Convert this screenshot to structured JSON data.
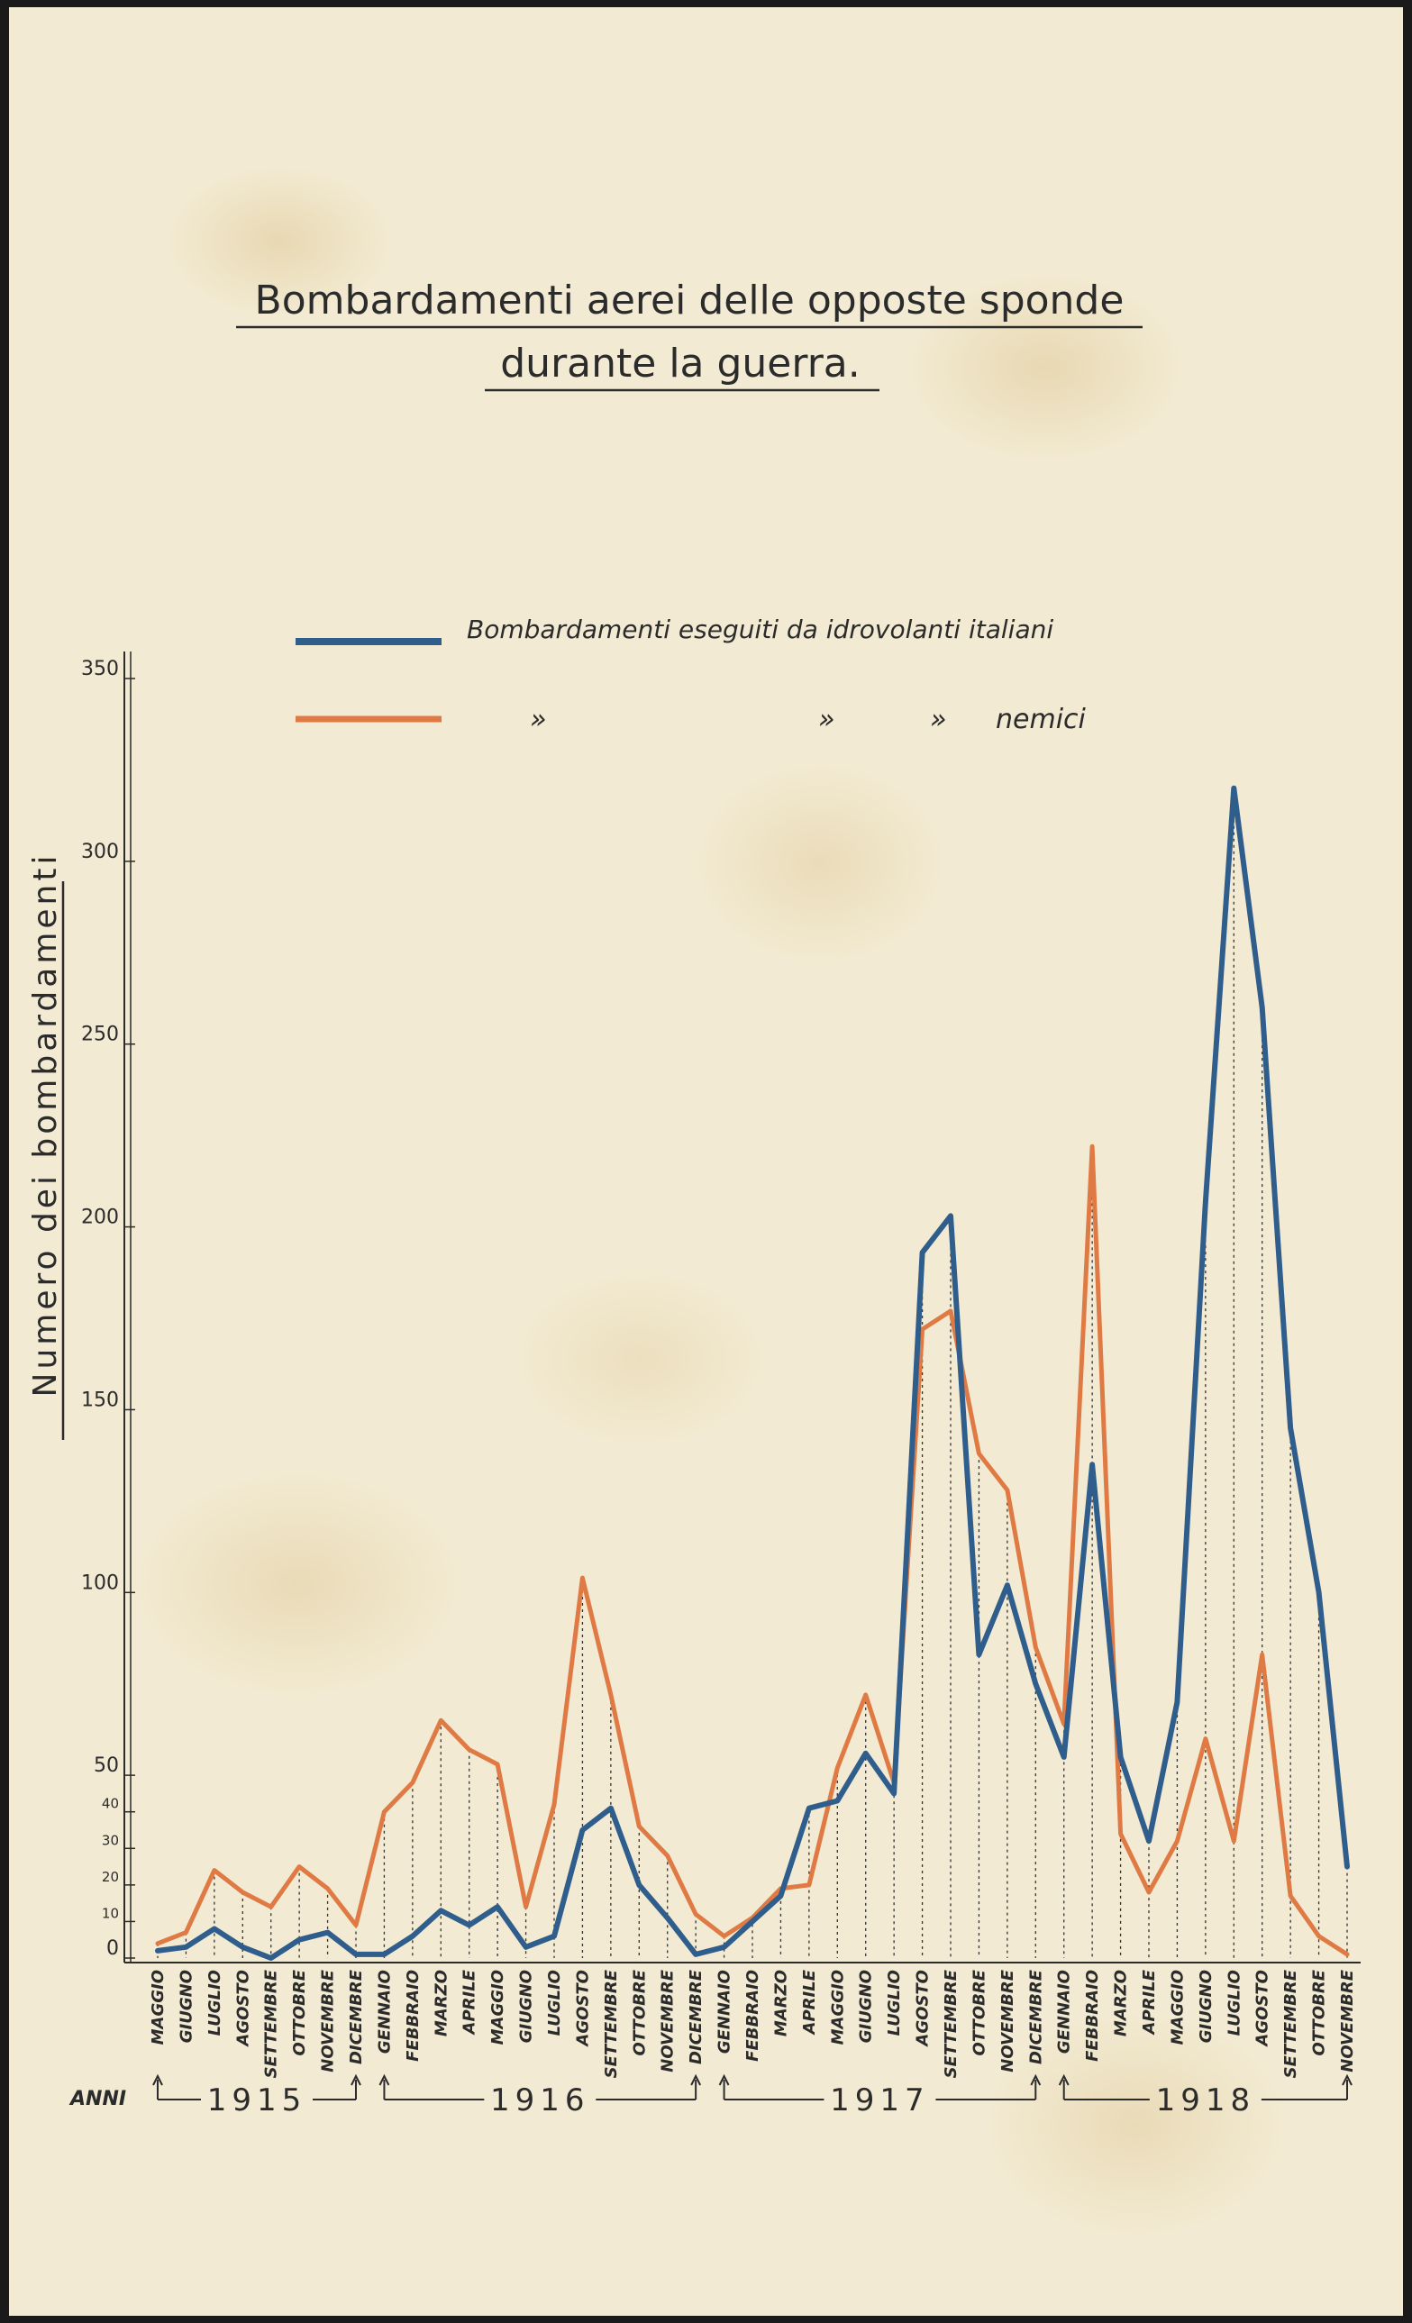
{
  "chart_data": {
    "type": "line",
    "title": "Bombardamenti aerei delle opposte sponde",
    "subtitle": "durante la guerra.",
    "ylabel": "Numero dei bombardamenti",
    "xlabel": "ANNI",
    "ylim": [
      0,
      350
    ],
    "yticks": [
      "350",
      "300",
      "250",
      "200",
      "150",
      "100",
      "50",
      "40",
      "30",
      "20",
      "10",
      "0"
    ],
    "grid": false,
    "legend_position": "top",
    "legend": {
      "italiani": "Bombardamenti eseguiti da idrovolanti italiani",
      "ditto_1": "»",
      "ditto_2": "»",
      "ditto_3": "»",
      "nemici": "nemici"
    },
    "colors": {
      "italiani": "#2f5d8c",
      "nemici": "#e07a45"
    },
    "years": [
      "1915",
      "1916",
      "1917",
      "1918"
    ],
    "categories": [
      "MAGGIO",
      "GIUGNO",
      "LUGLIO",
      "AGOSTO",
      "SETTEMBRE",
      "OTTOBRE",
      "NOVEMBRE",
      "DICEMBRE",
      "GENNAIO",
      "FEBBRAIO",
      "MARZO",
      "APRILE",
      "MAGGIO",
      "GIUGNO",
      "LUGLIO",
      "AGOSTO",
      "SETTEMBRE",
      "OTTOBRE",
      "NOVEMBRE",
      "DICEMBRE",
      "GENNAIO",
      "FEBBRAIO",
      "MARZO",
      "APRILE",
      "MAGGIO",
      "GIUGNO",
      "LUGLIO",
      "AGOSTO",
      "SETTEMBRE",
      "OTTOBRE",
      "NOVEMBRE",
      "DICEMBRE",
      "GENNAIO",
      "FEBBRAIO",
      "MARZO",
      "APRILE",
      "MAGGIO",
      "GIUGNO",
      "LUGLIO",
      "AGOSTO",
      "SETTEMBRE",
      "OTTOBRE",
      "NOVEMBRE"
    ],
    "series": [
      {
        "name": "Bombardamenti eseguiti da idrovolanti italiani",
        "color": "#2f5d8c",
        "values": [
          2,
          3,
          8,
          3,
          0,
          5,
          7,
          1,
          1,
          6,
          13,
          9,
          14,
          3,
          6,
          35,
          41,
          20,
          11,
          1,
          3,
          10,
          17,
          41,
          43,
          56,
          45,
          193,
          203,
          83,
          102,
          75,
          55,
          135,
          55,
          32,
          70,
          207,
          320,
          260,
          145,
          100,
          25
        ]
      },
      {
        "name": "nemici",
        "color": "#e07a45",
        "values": [
          4,
          7,
          24,
          18,
          14,
          25,
          19,
          9,
          40,
          48,
          65,
          57,
          53,
          14,
          42,
          104,
          72,
          36,
          28,
          12,
          6,
          11,
          19,
          20,
          52,
          72,
          48,
          172,
          177,
          138,
          128,
          85,
          64,
          222,
          34,
          18,
          32,
          60,
          32,
          83,
          17,
          6,
          1
        ]
      }
    ]
  }
}
